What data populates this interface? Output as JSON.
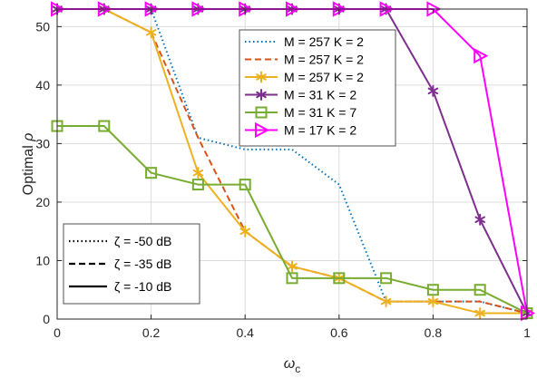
{
  "chart_data": {
    "type": "line",
    "xlabel": "ω",
    "xlabel_sub": "c",
    "ylabel": "Optimal",
    "ylabel_symbol": "ρ",
    "xlim": [
      0,
      1
    ],
    "ylim": [
      0,
      53
    ],
    "x_ticks": [
      0,
      0.2,
      0.4,
      0.6,
      0.8,
      1
    ],
    "x_tick_labels": [
      "0",
      "0.2",
      "0.4",
      "0.6",
      "0.8",
      "1"
    ],
    "y_ticks": [
      0,
      10,
      20,
      30,
      40,
      50
    ],
    "y_tick_labels": [
      "0",
      "10",
      "20",
      "30",
      "40",
      "50"
    ],
    "grid": true,
    "series": [
      {
        "name": "M = 257 K = 2",
        "color": "#0072BD",
        "style": "dotted",
        "marker": "none",
        "x": [
          0,
          0.1,
          0.2,
          0.3,
          0.4,
          0.5,
          0.6,
          0.7,
          0.8,
          0.9,
          1.0
        ],
        "y": [
          53,
          53,
          53,
          31,
          29,
          29,
          23,
          3,
          3,
          3,
          1
        ]
      },
      {
        "name": "M = 257 K = 2",
        "color": "#D95319",
        "style": "dashed",
        "marker": "none",
        "x": [
          0,
          0.1,
          0.2,
          0.3,
          0.4,
          0.5,
          0.6,
          0.7,
          0.8,
          0.9,
          1.0
        ],
        "y": [
          53,
          53,
          49,
          31,
          15,
          9,
          7,
          3,
          3,
          3,
          1
        ]
      },
      {
        "name": "M = 257 K = 2",
        "color": "#EDB120",
        "style": "solid",
        "marker": "asterisk",
        "x": [
          0,
          0.1,
          0.2,
          0.3,
          0.4,
          0.5,
          0.6,
          0.7,
          0.8,
          0.9,
          1.0
        ],
        "y": [
          53,
          53,
          49,
          25,
          15,
          9,
          7,
          3,
          3,
          1,
          1
        ]
      },
      {
        "name": "M = 31 K = 2",
        "color": "#7E2F8E",
        "style": "solid",
        "marker": "asterisk",
        "x": [
          0,
          0.1,
          0.2,
          0.3,
          0.4,
          0.5,
          0.6,
          0.7,
          0.8,
          0.9,
          1.0
        ],
        "y": [
          53,
          53,
          53,
          53,
          53,
          53,
          53,
          53,
          39,
          17,
          1
        ]
      },
      {
        "name": "M = 31 K = 7",
        "color": "#77AC30",
        "style": "solid",
        "marker": "square",
        "x": [
          0,
          0.1,
          0.2,
          0.3,
          0.4,
          0.5,
          0.6,
          0.7,
          0.8,
          0.9,
          1.0
        ],
        "y": [
          33,
          33,
          25,
          23,
          23,
          7,
          7,
          7,
          5,
          5,
          1
        ]
      },
      {
        "name": "M = 17 K = 2",
        "color": "#FF00FF",
        "style": "solid",
        "marker": "triangle-right",
        "x": [
          0,
          0.1,
          0.2,
          0.3,
          0.4,
          0.5,
          0.6,
          0.7,
          0.8,
          0.9,
          1.0
        ],
        "y": [
          53,
          53,
          53,
          53,
          53,
          53,
          53,
          53,
          53,
          45,
          1
        ]
      }
    ],
    "style_legend": [
      {
        "label": "ζ = -50 dB",
        "style": "dotted"
      },
      {
        "label": "ζ = -35 dB",
        "style": "dashed"
      },
      {
        "label": "ζ = -10 dB",
        "style": "solid"
      }
    ],
    "legend_position": "top-right",
    "style_legend_position": "bottom-left"
  }
}
